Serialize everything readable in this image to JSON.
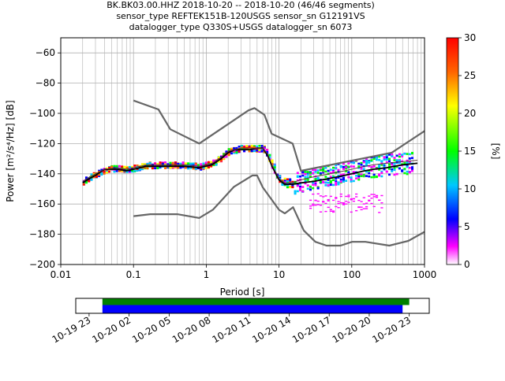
{
  "header": {
    "line1": "BK.BK03.00.HHZ   2018-10-20 -- 2018-10-20  (46/46 segments)",
    "line2": "sensor_type REFTEK151B-120USGS sensor_sn G12191VS",
    "line3": "datalogger_type Q330S+USGS datalogger_sn 6073"
  },
  "chart_data": {
    "type": "heatmap",
    "title": "BK.BK03.00.HHZ   2018-10-20 -- 2018-10-20  (46/46 segments)",
    "xlabel": "Period [s]",
    "ylabel": "Power [m²/s⁴/Hz] [dB]",
    "x_scale": "log",
    "xlim": [
      0.01,
      1000
    ],
    "ylim": [
      -200,
      -50
    ],
    "x_ticks": [
      0.01,
      0.1,
      1,
      10,
      100,
      1000
    ],
    "x_tick_labels": [
      "0.01",
      "0.1",
      "1",
      "10",
      "100",
      "1000"
    ],
    "y_ticks": [
      -200,
      -180,
      -160,
      -140,
      -120,
      -100,
      -80,
      -60
    ],
    "y_tick_labels": [
      "−200",
      "−180",
      "−160",
      "−140",
      "−120",
      "−100",
      "−80",
      "−60"
    ],
    "grid": true,
    "colorbar": {
      "label": "[%]",
      "range": [
        0,
        30
      ],
      "ticks": [
        0,
        5,
        10,
        15,
        20,
        25,
        30
      ],
      "tick_labels": [
        "0",
        "5",
        "10",
        "15",
        "20",
        "25",
        "30"
      ],
      "colors": [
        "#ffffff",
        "#ff00ff",
        "#0000ff",
        "#00c8ff",
        "#00ff00",
        "#ffff00",
        "#ff6400",
        "#ff0000"
      ]
    },
    "noise_model_color": "#666666",
    "mean_color": "#000000",
    "series": [
      {
        "role": "high-noise-model",
        "x": [
          0.1,
          0.22,
          0.32,
          0.8,
          3.8,
          4.6,
          6.3,
          7.9,
          15.4,
          20,
          354.8,
          10000
        ],
        "y": [
          -91.5,
          -97.4,
          -110.5,
          -120,
          -98,
          -96.5,
          -101,
          -113.5,
          -120,
          -138,
          -126,
          -80
        ]
      },
      {
        "role": "low-noise-model",
        "x": [
          0.1,
          0.17,
          0.4,
          0.8,
          1.24,
          2.4,
          4.3,
          5,
          6,
          10,
          12,
          15.6,
          21.9,
          31.6,
          45,
          70,
          101,
          154,
          328,
          600,
          10000
        ],
        "y": [
          -168,
          -166.7,
          -166.7,
          -169.2,
          -163.7,
          -148.6,
          -141.1,
          -141.1,
          -149,
          -163.8,
          -166.2,
          -162.1,
          -177.5,
          -185,
          -187.5,
          -187.5,
          -185,
          -185,
          -187.5,
          -184.4,
          -151.5
        ]
      },
      {
        "role": "mean",
        "x": [
          0.02,
          0.025,
          0.03,
          0.04,
          0.06,
          0.08,
          0.1,
          0.15,
          0.2,
          0.3,
          0.5,
          0.8,
          1.2,
          1.6,
          2,
          2.5,
          3,
          4,
          5,
          6,
          7,
          8,
          10,
          12,
          15,
          20,
          30,
          50,
          80,
          100,
          150,
          200,
          300,
          500,
          800
        ],
        "y": [
          -146,
          -143,
          -141,
          -137,
          -137,
          -138,
          -137,
          -135,
          -135,
          -135,
          -135,
          -136,
          -134,
          -130,
          -126,
          -124,
          -124,
          -124,
          -123,
          -123,
          -128,
          -135,
          -144,
          -147,
          -147,
          -146,
          -145,
          -143,
          -141,
          -140,
          -138,
          -137,
          -136,
          -134,
          -133
        ]
      },
      {
        "role": "mode",
        "x": [
          0.02,
          0.025,
          0.03,
          0.04,
          0.06,
          0.08,
          0.1,
          0.15,
          0.2,
          0.3,
          0.5,
          0.8,
          1.2,
          1.6,
          2,
          2.5,
          3,
          4,
          5,
          6,
          7,
          8,
          10,
          12,
          15,
          20,
          30,
          50,
          80,
          100,
          150,
          200,
          300,
          500,
          800
        ],
        "y": [
          -145,
          -142,
          -140,
          -137,
          -136,
          -137,
          -136,
          -134,
          -134,
          -134,
          -134,
          -135,
          -133,
          -129,
          -125,
          -124,
          -123,
          -123,
          -123,
          -123,
          -127,
          -134,
          -143,
          -146,
          -146,
          -144,
          -142,
          -140,
          -138,
          -137,
          -135,
          -134,
          -133,
          -132,
          -131
        ]
      }
    ],
    "timeline": {
      "x_tick_labels": [
        "10-19 23",
        "10-20 02",
        "10-20 05",
        "10-20 08",
        "10-20 11",
        "10-20 14",
        "10-20 17",
        "10-20 20",
        "10-20 23"
      ],
      "data_span": [
        "2018-10-20 00:00",
        "2018-10-20 23:00"
      ],
      "processed_span": [
        "2018-10-20 00:00",
        "2018-10-20 22:30"
      ],
      "data_color": "#008000",
      "processed_color": "#0000ff"
    }
  }
}
